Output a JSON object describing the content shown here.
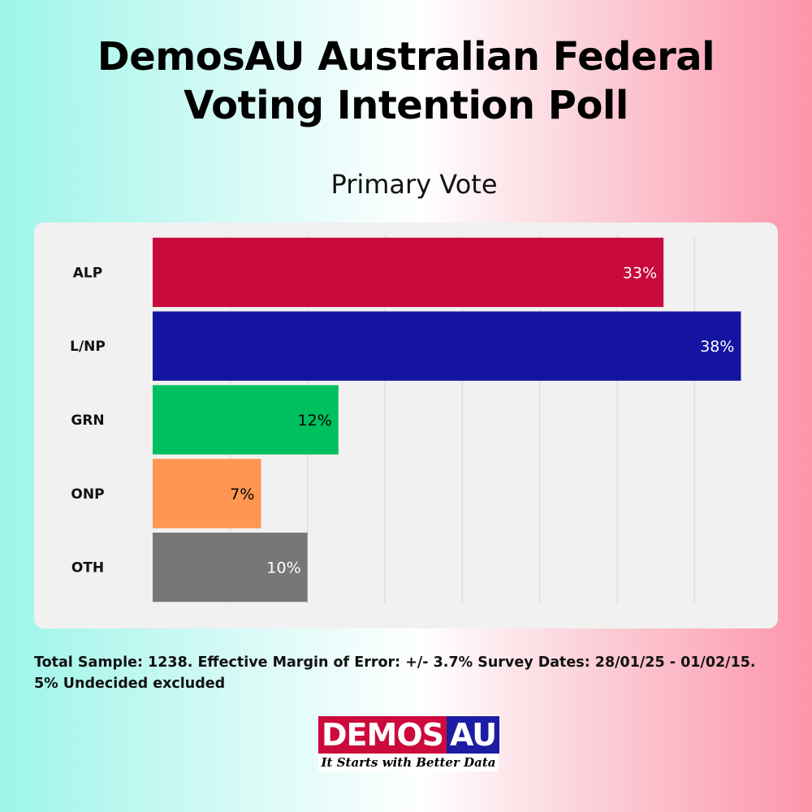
{
  "title": {
    "line1": "DemosAU Australian Federal",
    "line2": "Voting Intention Poll"
  },
  "chart_data": {
    "type": "bar",
    "orientation": "horizontal",
    "title": "Primary Vote",
    "categories": [
      "ALP",
      "L/NP",
      "GRN",
      "ONP",
      "OTH"
    ],
    "values": [
      33,
      38,
      12,
      7,
      10
    ],
    "data_labels": [
      "33%",
      "38%",
      "12%",
      "7%",
      "10%"
    ],
    "colors": [
      "#c8093b",
      "#1414a0",
      "#00c060",
      "#ff9750",
      "#777777"
    ],
    "label_colors": [
      "#ffffff",
      "#ffffff",
      "#000000",
      "#000000",
      "#ffffff"
    ],
    "xlim": [
      0,
      38.5
    ],
    "grid": true,
    "grid_step": 5
  },
  "footnote": {
    "line1": "Total Sample: 1238. Effective Margin of Error: +/- 3.7% Survey Dates: 28/01/25 - 01/02/15.",
    "line2": "5% Undecided excluded"
  },
  "logo": {
    "part1": "DEMOS",
    "part2": "AU",
    "tagline": "It Starts with Better Data",
    "color1": "#cd0a3c",
    "color2": "#1b1ea2"
  }
}
